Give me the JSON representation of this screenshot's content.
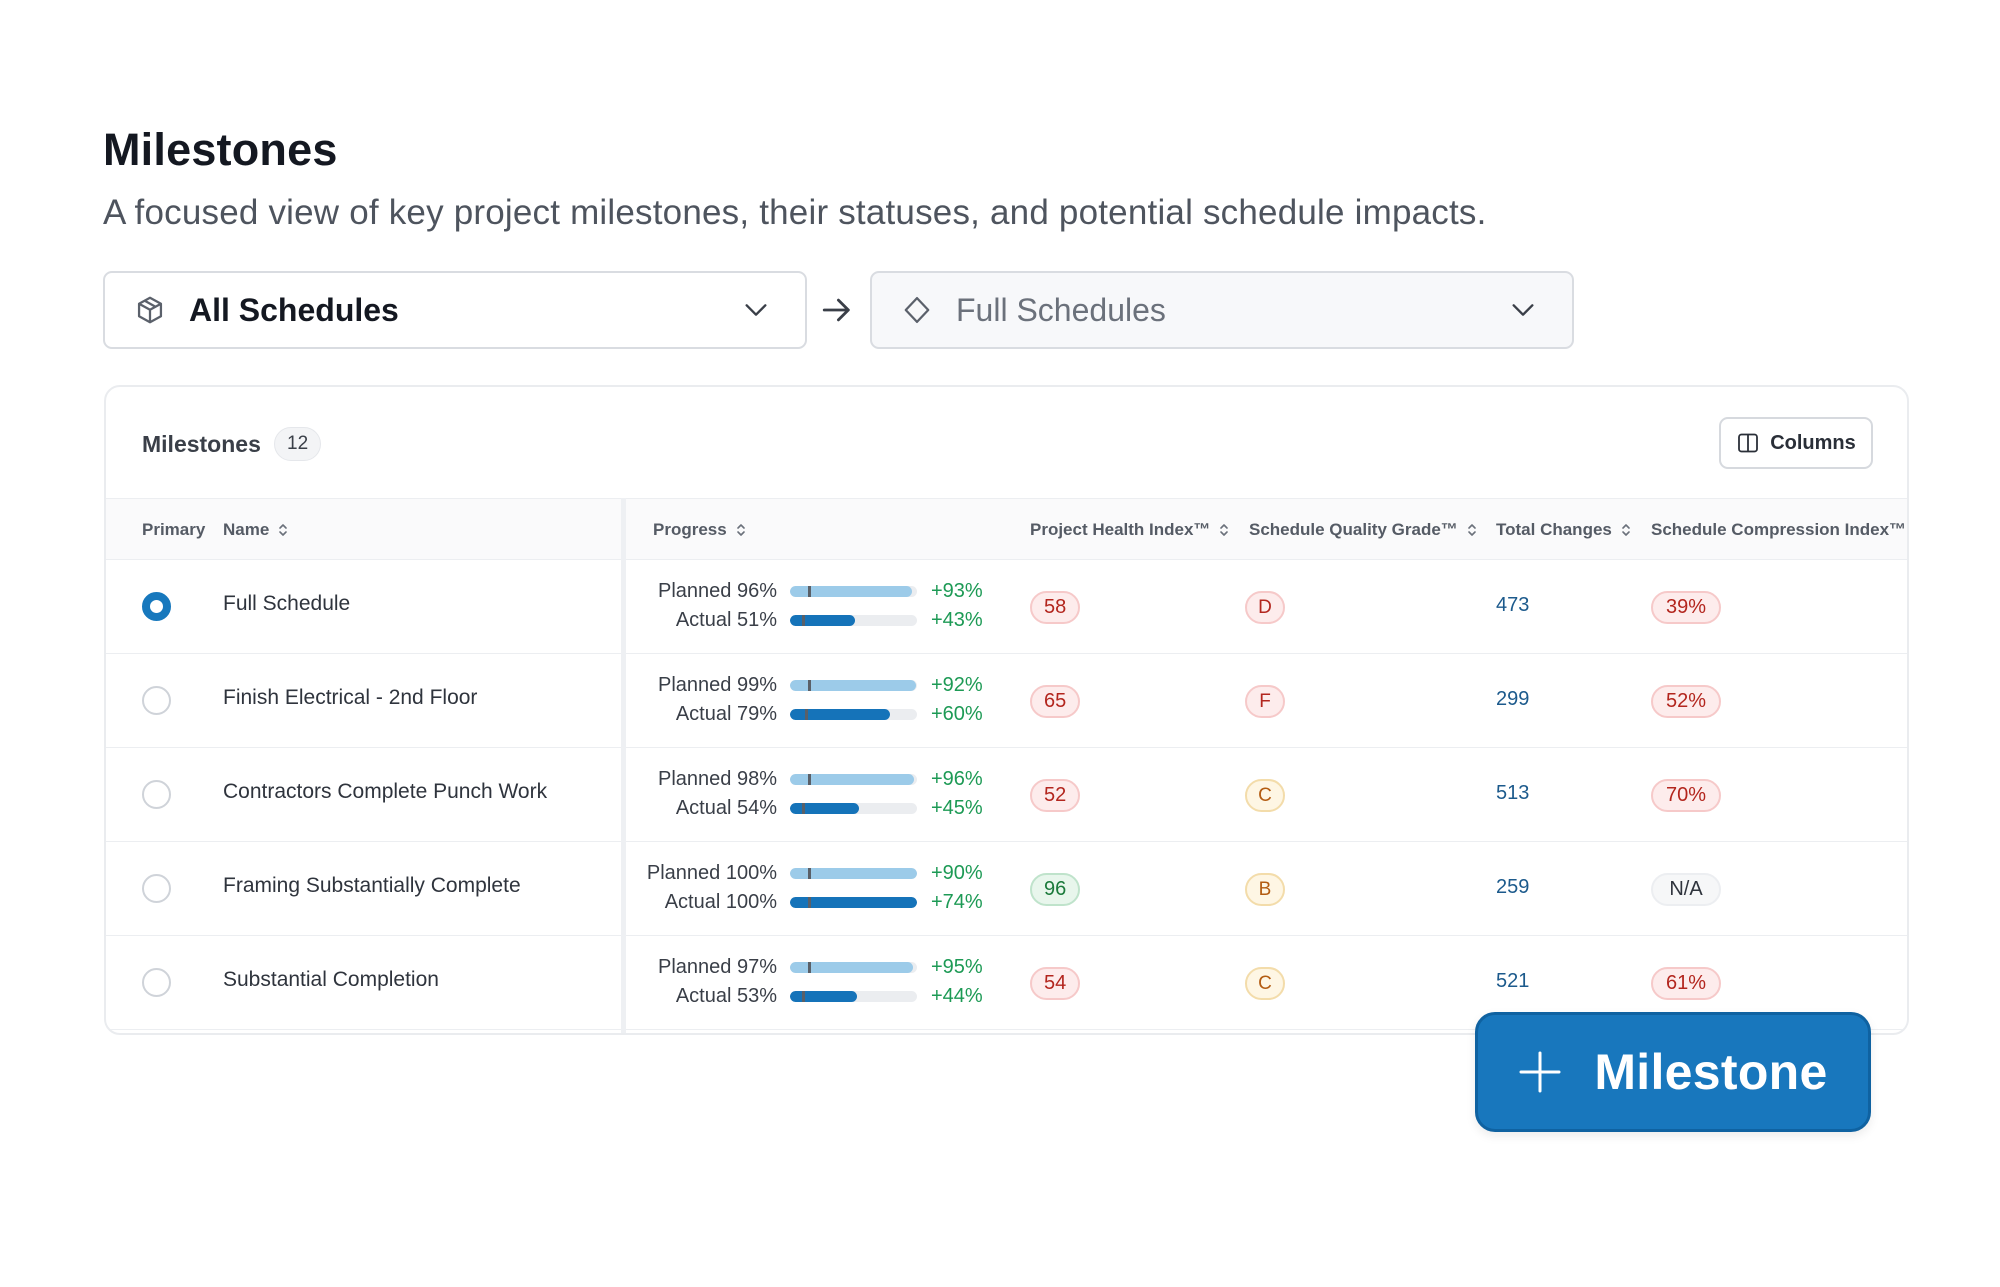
{
  "page": {
    "title": "Milestones",
    "subtitle": "A focused view of key project milestones, their statuses, and potential schedule impacts."
  },
  "filters": {
    "schedule_select": {
      "value": "All Schedules",
      "icon": "package-icon"
    },
    "arrow_icon": "arrow-right-icon",
    "type_select": {
      "value": "Full Schedules",
      "icon": "diamond-icon"
    }
  },
  "table": {
    "title": "Milestones",
    "count": "12",
    "columns_button": "Columns",
    "headers": {
      "primary": "Primary",
      "name": "Name",
      "progress": "Progress",
      "health": "Project Health Index™",
      "grade": "Schedule Quality Grade™",
      "changes": "Total Changes",
      "compression": "Schedule Compression Index™"
    },
    "rows": [
      {
        "primary": true,
        "name": "Full Schedule",
        "planned_label": "Planned 96%",
        "planned_value": 96,
        "planned_delta": "+93%",
        "actual_label": "Actual  51%",
        "actual_value": 51,
        "actual_delta": "+43%",
        "health": "58",
        "health_status": "red",
        "grade": "D",
        "grade_status": "bad",
        "changes": "473",
        "compression": "39%",
        "compression_status": "red"
      },
      {
        "primary": false,
        "name": "Finish Electrical - 2nd Floor",
        "planned_label": "Planned 99%",
        "planned_value": 99,
        "planned_delta": "+92%",
        "actual_label": "Actual  79%",
        "actual_value": 79,
        "actual_delta": "+60%",
        "health": "65",
        "health_status": "red",
        "grade": "F",
        "grade_status": "bad",
        "changes": "299",
        "compression": "52%",
        "compression_status": "red"
      },
      {
        "primary": false,
        "name": "Contractors Complete Punch Work",
        "planned_label": "Planned 98%",
        "planned_value": 98,
        "planned_delta": "+96%",
        "actual_label": "Actual  54%",
        "actual_value": 54,
        "actual_delta": "+45%",
        "health": "52",
        "health_status": "red",
        "grade": "C",
        "grade_status": "mid",
        "changes": "513",
        "compression": "70%",
        "compression_status": "red"
      },
      {
        "primary": false,
        "name": "Framing Substantially Complete",
        "planned_label": "Planned 100%",
        "planned_value": 100,
        "planned_delta": "+90%",
        "actual_label": "Actual 100%",
        "actual_value": 100,
        "actual_delta": "+74%",
        "health": "96",
        "health_status": "green",
        "grade": "B",
        "grade_status": "mid",
        "changes": "259",
        "compression": "N/A",
        "compression_status": "neutral"
      },
      {
        "primary": false,
        "name": "Substantial Completion",
        "planned_label": "Planned 97%",
        "planned_value": 97,
        "planned_delta": "+95%",
        "actual_label": "Actual  53%",
        "actual_value": 53,
        "actual_delta": "+44%",
        "health": "54",
        "health_status": "red",
        "grade": "C",
        "grade_status": "mid",
        "changes": "521",
        "compression": "61%",
        "compression_status": "red"
      }
    ]
  },
  "fab": {
    "label": "Milestone",
    "icon": "plus-icon"
  },
  "colors": {
    "accent": "#1877bd",
    "planned_bar": "#9ccbe9",
    "actual_bar": "#1573b9",
    "positive_delta": "#1d9a55",
    "danger": "#b3261e",
    "success": "#1b7a3b"
  }
}
